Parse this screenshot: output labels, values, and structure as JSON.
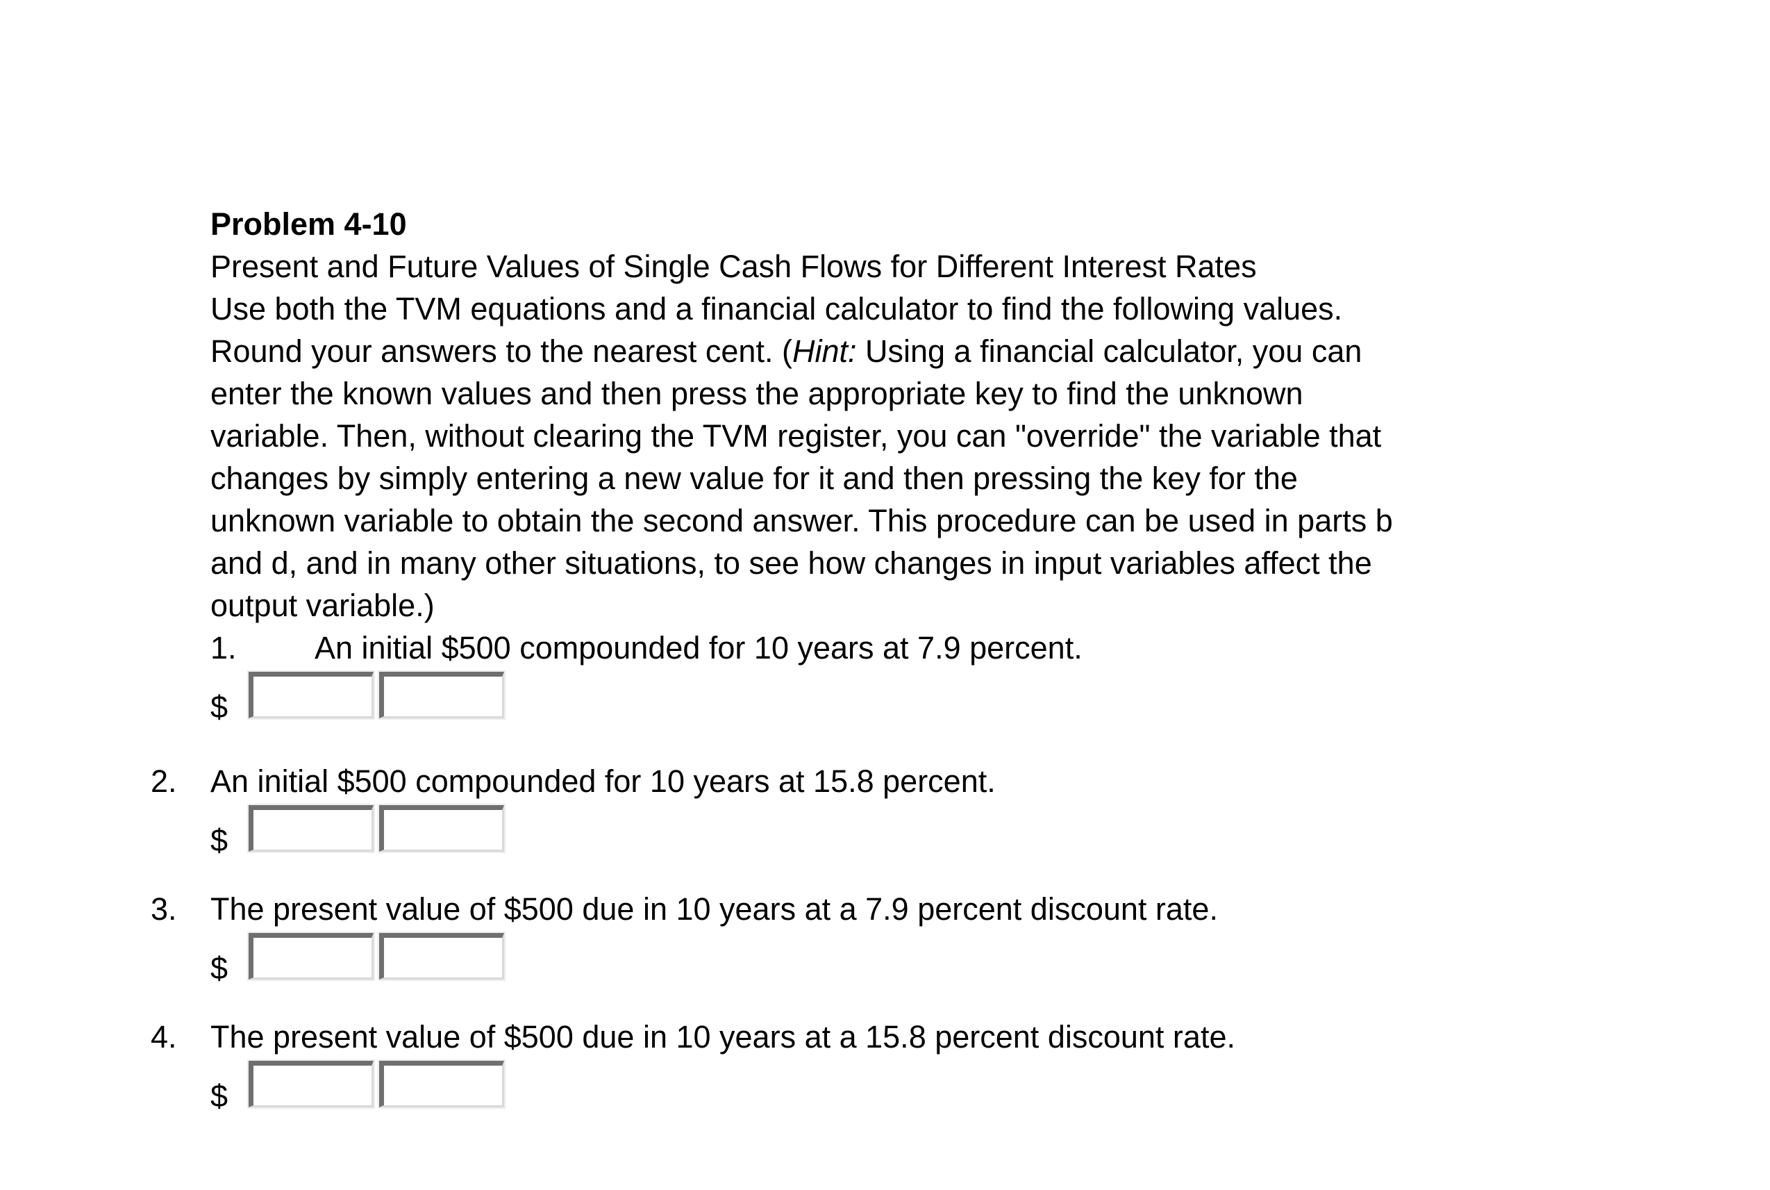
{
  "colors": {
    "background": "#ffffff",
    "text": "#000000",
    "input_border_dark": "#6f6f6f",
    "input_border_light": "#d9d9d9",
    "input_background": "#ffffff"
  },
  "problem": {
    "title": "Problem 4-10",
    "subtitle": "Present and Future Values of Single Cash Flows for Different Interest Rates",
    "line_use": "Use both the TVM equations and a financial calculator to find the following values.",
    "hint_line": {
      "pre": "Round your answers to the nearest cent. (",
      "italic": "Hint:",
      "post": " Using a financial calculator, you can"
    },
    "body_lines": [
      "enter the known values and then press the appropriate key to find the unknown",
      "variable. Then, without clearing the TVM register, you can \"override\" the variable that",
      "changes by simply entering a new value for it and then pressing the key for the",
      "unknown variable to obtain the second answer. This procedure can be used in parts b",
      "and d, and in many other situations, to see how changes in input variables affect the",
      "output variable.)"
    ]
  },
  "items": [
    {
      "number": "1.",
      "text": "An initial $500 compounded for 10 years at 7.9 percent.",
      "currency": "$",
      "inputs": [
        {
          "value": ""
        },
        {
          "value": ""
        }
      ]
    },
    {
      "number": "2.",
      "text": "An initial $500 compounded for 10 years at 15.8 percent.",
      "currency": "$",
      "inputs": [
        {
          "value": ""
        },
        {
          "value": ""
        }
      ]
    },
    {
      "number": "3.",
      "text": "The present value of $500 due in 10 years at a 7.9 percent discount rate.",
      "currency": "$",
      "inputs": [
        {
          "value": ""
        },
        {
          "value": ""
        }
      ]
    },
    {
      "number": "4.",
      "text": "The present value of $500 due in 10 years at a 15.8 percent discount rate.",
      "currency": "$",
      "inputs": [
        {
          "value": ""
        },
        {
          "value": ""
        }
      ]
    }
  ]
}
